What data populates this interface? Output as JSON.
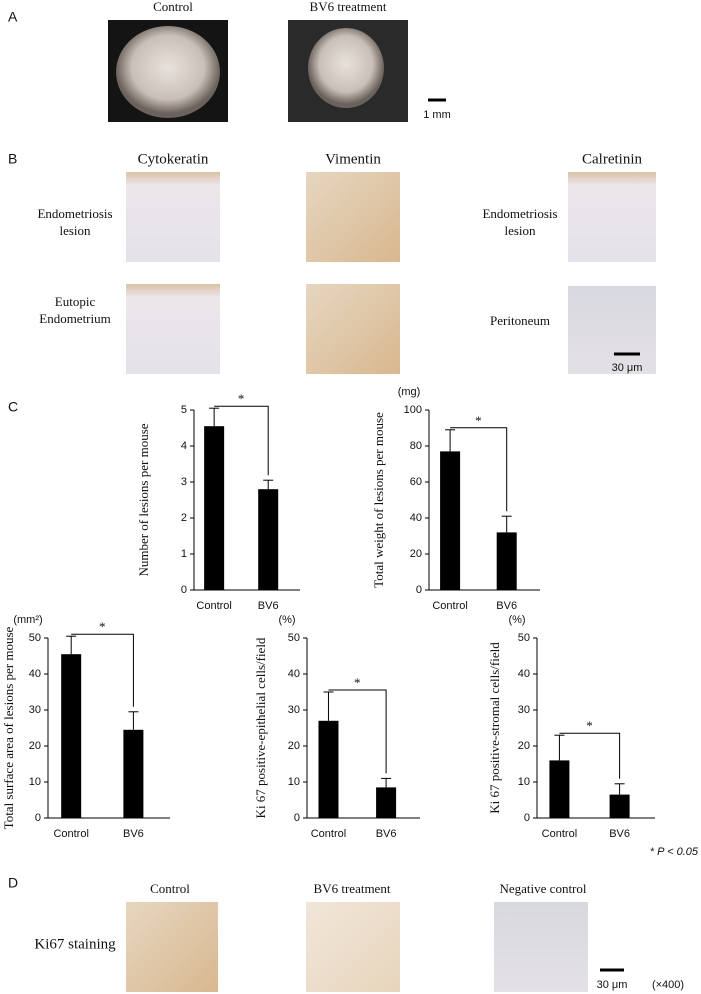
{
  "panel_a": {
    "label": "A",
    "headers": [
      "Control",
      "BV6 treatment"
    ],
    "scale": "1 mm"
  },
  "panel_b": {
    "label": "B",
    "headers": [
      "Cytokeratin",
      "Vimentin",
      "Calretinin"
    ],
    "row_labels": [
      [
        "Endometriosis",
        "lesion"
      ],
      [
        "Eutopic",
        "Endometrium"
      ]
    ],
    "right_labels": [
      [
        "Endometriosis",
        "lesion"
      ],
      [
        "Peritoneum"
      ]
    ],
    "scale": "30 μm"
  },
  "panel_c": {
    "label": "C",
    "note": "* P < 0.05"
  },
  "chart_data": [
    {
      "type": "bar",
      "y_label": "Number of lesions per mouse",
      "categories": [
        "Control",
        "BV6"
      ],
      "values": [
        4.55,
        2.8
      ],
      "errors": [
        0.5,
        0.25
      ],
      "ylim": [
        0,
        5
      ],
      "yticks": [
        0,
        1,
        2,
        3,
        4,
        5
      ],
      "color": "#000000",
      "significance": "*"
    },
    {
      "type": "bar",
      "y_label": "Total weight of lesions per mouse",
      "unit": "(mg)",
      "categories": [
        "Control",
        "BV6"
      ],
      "values": [
        77,
        32
      ],
      "errors": [
        12,
        9
      ],
      "ylim": [
        0,
        100
      ],
      "yticks": [
        0,
        20,
        40,
        60,
        80,
        100
      ],
      "color": "#000000",
      "significance": "*"
    },
    {
      "type": "bar",
      "y_label": "Total surface area of lesions per mouse",
      "unit": "(mm²)",
      "categories": [
        "Control",
        "BV6"
      ],
      "values": [
        45.5,
        24.5
      ],
      "errors": [
        5,
        5
      ],
      "ylim": [
        0,
        50
      ],
      "yticks": [
        0,
        10,
        20,
        30,
        40,
        50
      ],
      "color": "#000000",
      "significance": "*"
    },
    {
      "type": "bar",
      "y_label": "Ki 67 positive-epithelial cells/field",
      "unit": "(%)",
      "categories": [
        "Control",
        "BV6"
      ],
      "values": [
        27,
        8.5
      ],
      "errors": [
        8,
        2.5
      ],
      "ylim": [
        0,
        50
      ],
      "yticks": [
        0,
        10,
        20,
        30,
        40,
        50
      ],
      "color": "#000000",
      "significance": "*"
    },
    {
      "type": "bar",
      "y_label": "Ki 67 positive-stromal cells/field",
      "unit": "(%)",
      "categories": [
        "Control",
        "BV6"
      ],
      "values": [
        16,
        6.5
      ],
      "errors": [
        7,
        3
      ],
      "ylim": [
        0,
        50
      ],
      "yticks": [
        0,
        10,
        20,
        30,
        40,
        50
      ],
      "color": "#000000",
      "significance": "*"
    }
  ],
  "panel_d": {
    "label": "D",
    "headers": [
      "Control",
      "BV6 treatment",
      "Negative control"
    ],
    "row_label": "Ki67 staining",
    "scale": "30 μm",
    "magnification": "(×400)"
  }
}
